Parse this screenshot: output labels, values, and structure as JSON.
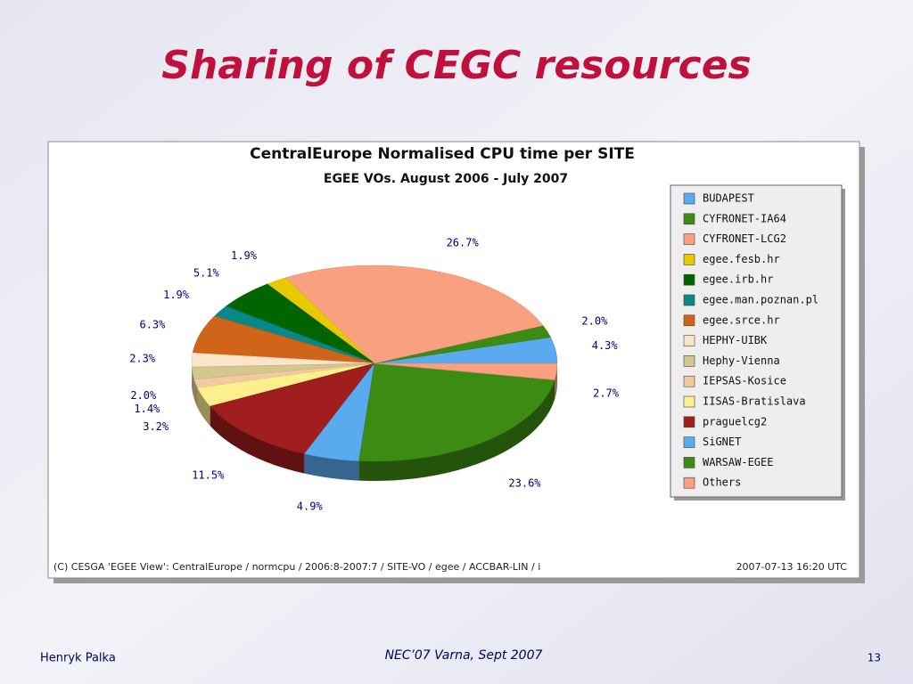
{
  "slide": {
    "title": "Sharing of CEGC resources",
    "footer": {
      "author": "Henryk Palka",
      "event": "NEC’07 Varna, Sept 2007",
      "page": "13"
    }
  },
  "chart_data": {
    "type": "pie",
    "title": "CentralEurope Normalised CPU time per SITE",
    "subtitle": "EGEE VOs. August 2006 - July 2007",
    "categories": [
      "BUDAPEST",
      "CYFRONET-IA64",
      "CYFRONET-LCG2",
      "egee.fesb.hr",
      "egee.irb.hr",
      "egee.man.poznan.pl",
      "egee.srce.hr",
      "HEPHY-UIBK",
      "Hephy-Vienna",
      "IEPSAS-Kosice",
      "IISAS-Bratislava",
      "praguelcg2",
      "SiGNET",
      "WARSAW-EGEE",
      "Others"
    ],
    "values": [
      4.3,
      2.0,
      26.7,
      1.9,
      5.1,
      1.9,
      6.3,
      2.3,
      2.0,
      1.4,
      3.2,
      11.5,
      4.9,
      23.6,
      2.7
    ],
    "value_labels": [
      "4.3%",
      "2.0%",
      "26.7%",
      "1.9%",
      "5.1%",
      "1.9%",
      "6.3%",
      "2.3%",
      "2.0%",
      "1.4%",
      "3.2%",
      "11.5%",
      "4.9%",
      "23.6%",
      "2.7%"
    ],
    "colors": [
      "#5aaaf0",
      "#3c8c14",
      "#f8a080",
      "#e8c800",
      "#006400",
      "#088888",
      "#d06418",
      "#fce4c8",
      "#d2c88c",
      "#f4c8a0",
      "#fcf08c",
      "#a01e1e",
      "#5aaaf0",
      "#3c8c14",
      "#f8a080"
    ],
    "legend": "right",
    "credit": "(C) CESGA 'EGEE View': CentralEurope / normcpu / 2006:8-2007:7 / SITE-VO / egee / ACCBAR-LIN / i",
    "timestamp": "2007-07-13 16:20 UTC"
  }
}
